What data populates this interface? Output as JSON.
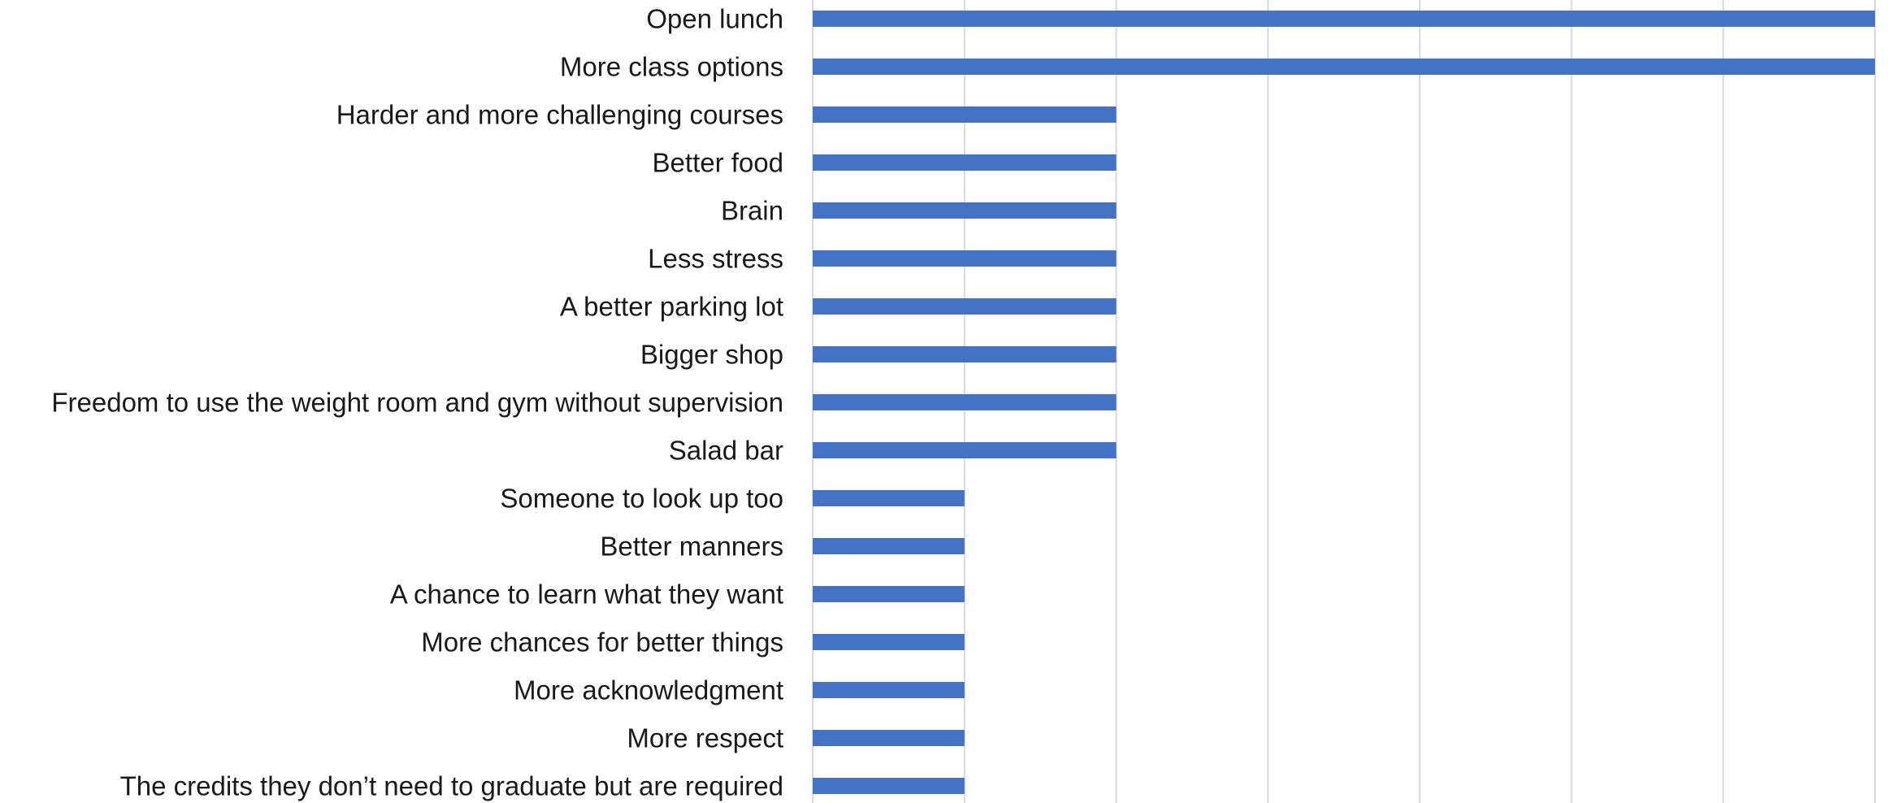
{
  "chart_data": {
    "type": "bar",
    "orientation": "horizontal",
    "categories": [
      "Open lunch",
      "More class options",
      "Harder and more challenging courses",
      "Better food",
      "Brain",
      "Less stress",
      "A better parking lot",
      "Bigger shop",
      "Freedom to use the weight room and gym without supervision",
      "Salad bar",
      "Someone to look up too",
      "Better manners",
      "A chance to learn what they want",
      "More chances for better things",
      "More acknowledgment ",
      "More respect",
      "The credits they don’t need to graduate but are required"
    ],
    "values": [
      7,
      7,
      2,
      2,
      2,
      2,
      2,
      2,
      2,
      2,
      1,
      1,
      1,
      1,
      1,
      1,
      1
    ],
    "xlim": [
      0,
      7
    ],
    "x_gridlines": true,
    "bar_color": "#4472C4",
    "gridline_color": "#d9d9d9"
  }
}
